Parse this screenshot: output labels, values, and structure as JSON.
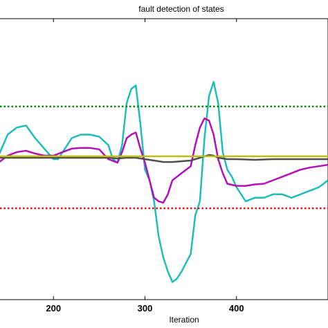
{
  "chart_data": {
    "type": "line",
    "title": "fault detection of states",
    "xlabel": "Iteration",
    "ylabel": "",
    "xlim": [
      100,
      500
    ],
    "ylim": [
      -2.0,
      2.0
    ],
    "x_ticks": [
      200,
      300,
      400
    ],
    "grid": false,
    "legend": "none",
    "series": [
      {
        "color": "#1EBDBD",
        "line_style": "solid",
        "x": [
          100,
          130,
          140,
          150,
          160,
          170,
          180,
          190,
          200,
          205,
          210,
          220,
          230,
          240,
          250,
          260,
          265,
          270,
          275,
          280,
          285,
          290,
          295,
          300,
          305,
          310,
          315,
          320,
          325,
          330,
          335,
          340,
          350,
          355,
          360,
          365,
          370,
          375,
          380,
          385,
          390,
          395,
          400,
          410,
          420,
          430,
          440,
          450,
          460,
          470,
          480,
          490,
          500
        ],
        "y": [
          -0.6,
          -0.5,
          0.05,
          0.35,
          0.45,
          0.48,
          0.3,
          0.15,
          0.0,
          0.0,
          0.1,
          0.3,
          0.35,
          0.35,
          0.32,
          0.2,
          0.0,
          -0.05,
          0.2,
          0.8,
          1.0,
          1.05,
          0.5,
          -0.15,
          -0.3,
          -0.6,
          -1.1,
          -1.4,
          -1.6,
          -1.75,
          -1.7,
          -1.6,
          -1.35,
          -0.8,
          -0.6,
          0.3,
          0.9,
          1.1,
          0.8,
          0.1,
          -0.15,
          -0.25,
          -0.4,
          -0.6,
          -0.55,
          -0.55,
          -0.5,
          -0.5,
          -0.55,
          -0.5,
          -0.45,
          -0.4,
          -0.3
        ]
      },
      {
        "color": "#B40EBA",
        "line_style": "solid",
        "x": [
          100,
          140,
          150,
          160,
          170,
          180,
          190,
          200,
          210,
          220,
          230,
          240,
          250,
          260,
          270,
          275,
          280,
          285,
          290,
          295,
          300,
          305,
          310,
          315,
          320,
          325,
          330,
          340,
          350,
          355,
          360,
          365,
          370,
          375,
          380,
          385,
          390,
          400,
          410,
          420,
          430,
          440,
          450,
          460,
          470,
          480,
          490,
          500
        ],
        "y": [
          -0.35,
          -0.05,
          0.05,
          0.1,
          0.12,
          0.08,
          0.05,
          0.05,
          0.1,
          0.15,
          0.16,
          0.16,
          0.14,
          0.0,
          -0.05,
          0.1,
          0.3,
          0.35,
          0.38,
          0.15,
          -0.05,
          -0.3,
          -0.55,
          -0.6,
          -0.62,
          -0.5,
          -0.3,
          -0.2,
          -0.1,
          0.2,
          0.45,
          0.58,
          0.55,
          0.35,
          0.0,
          -0.2,
          -0.35,
          -0.38,
          -0.38,
          -0.36,
          -0.35,
          -0.3,
          -0.25,
          -0.2,
          -0.15,
          -0.12,
          -0.1,
          -0.08
        ]
      },
      {
        "color": "#4D4D4D",
        "line_style": "solid",
        "x": [
          100,
          150,
          200,
          250,
          260,
          270,
          280,
          290,
          300,
          310,
          320,
          330,
          340,
          350,
          360,
          365,
          370,
          375,
          380,
          390,
          400,
          420,
          440,
          460,
          480,
          500
        ],
        "y": [
          0.02,
          0.02,
          0.02,
          0.02,
          0.02,
          0.01,
          0.02,
          0.02,
          0.0,
          -0.02,
          -0.04,
          -0.04,
          -0.03,
          -0.02,
          0.02,
          0.04,
          0.06,
          0.05,
          0.02,
          0.0,
          0.0,
          -0.01,
          0.0,
          0.0,
          0.0,
          0.0
        ]
      },
      {
        "color": "#BEBE10",
        "line_style": "solid",
        "x": [
          100,
          150,
          200,
          250,
          300,
          350,
          400,
          450,
          500
        ],
        "y": [
          0.04,
          0.04,
          0.04,
          0.04,
          0.04,
          0.04,
          0.04,
          0.04,
          0.04
        ]
      },
      {
        "color": "#008C00",
        "line_style": "dotted",
        "x": [
          100,
          500
        ],
        "y": [
          0.75,
          0.75
        ]
      },
      {
        "color": "#E01010",
        "line_style": "dotted",
        "x": [
          100,
          500
        ],
        "y": [
          -0.7,
          -0.7
        ]
      }
    ]
  }
}
